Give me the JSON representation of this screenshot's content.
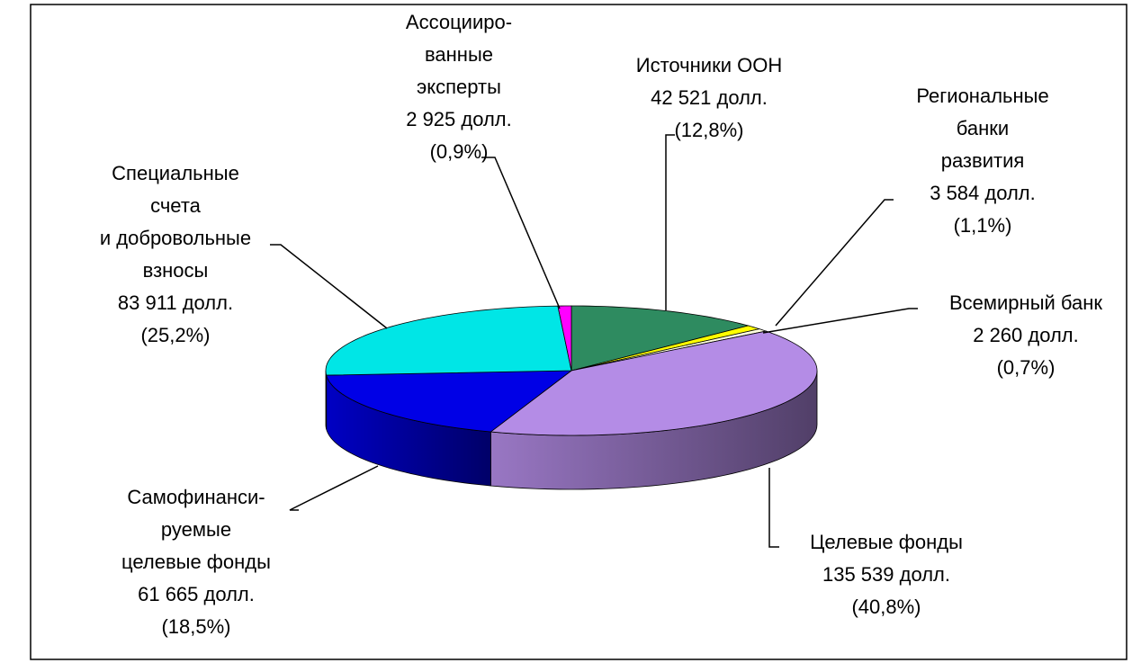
{
  "chart_data": {
    "type": "pie",
    "categories": [
      "Источники ООН",
      "Региональные\nбанки\nразвития",
      "Всемирный банк",
      "Целевые фонды",
      "Самофинанси-\nруемые\nцелевые фонды",
      "Специальные\nсчета\nи добровольные\nвзносы",
      "Ассоцииро-\nванные\nэксперты"
    ],
    "values": [
      42521,
      3584,
      2260,
      135539,
      61665,
      83911,
      2925
    ],
    "value_labels": [
      "42 521 долл.",
      "3 584 долл.",
      "2 260 долл.",
      "135 539 долл.",
      "61 665 долл.",
      "83 911 долл.",
      "2 925 долл."
    ],
    "percent_labels": [
      "(12,8%)",
      "(1,1%)",
      "(0,7%)",
      "(40,8%)",
      "(18,5%)",
      "(25,2%)",
      "(0,9%)"
    ],
    "colors": [
      "#2e8b60",
      "#ffff00",
      "#ffffe0",
      "#b48ce6",
      "#0000e6",
      "#00e6e6",
      "#ff00ff"
    ]
  }
}
